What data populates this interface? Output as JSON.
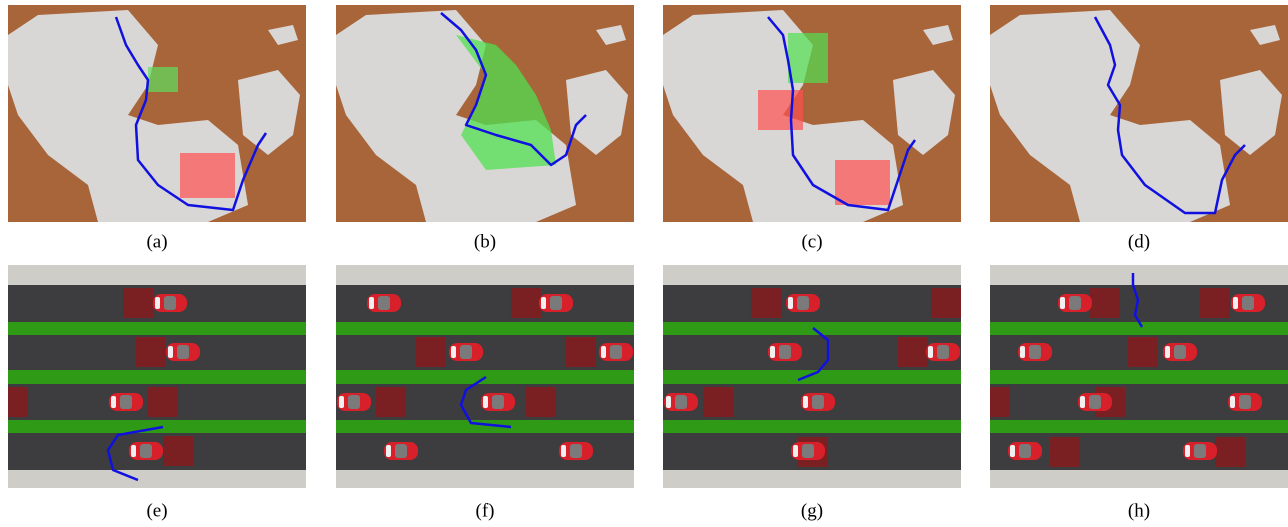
{
  "captions": [
    "(a)",
    "(b)",
    "(c)",
    "(d)",
    "(e)",
    "(f)",
    "(g)",
    "(h)"
  ]
}
